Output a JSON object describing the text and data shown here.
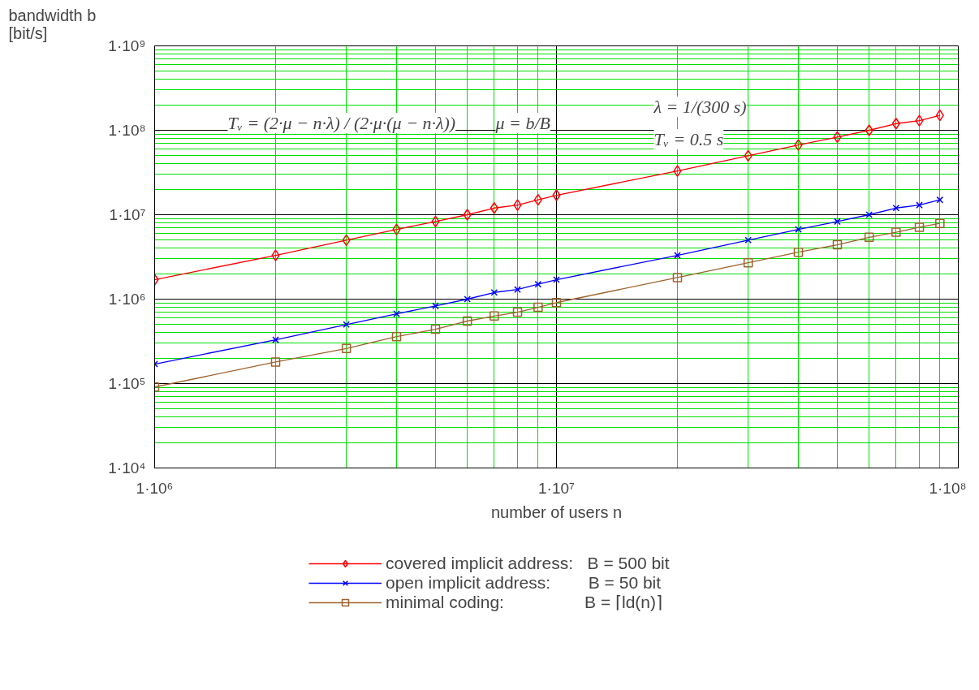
{
  "chart_data": {
    "type": "line",
    "xlabel": "number of users n",
    "ylabel": "bandwidth b [bit/s]",
    "x": [
      1000000,
      2000000,
      3000000,
      4000000,
      5000000,
      6000000,
      7000000,
      8000000,
      9000000,
      10000000,
      20000000,
      30000000,
      40000000,
      50000000,
      60000000,
      70000000,
      80000000,
      90000000
    ],
    "series": [
      {
        "name": "covered implicit address:   B = 500 bit",
        "color": "#ff0000",
        "marker": "diamond",
        "values": [
          1700000,
          3300000,
          5000000,
          6700000,
          8300000,
          10000000,
          12000000,
          13000000,
          15000000,
          17000000,
          33000000,
          50000000,
          67000000,
          83000000,
          100000000,
          120000000,
          130000000,
          150000000
        ]
      },
      {
        "name": "open implicit address:        B = 50 bit",
        "color": "#0000ff",
        "marker": "cross",
        "values": [
          170000,
          330000,
          500000,
          670000,
          830000,
          1000000,
          1200000,
          1300000,
          1500000,
          1700000,
          3300000,
          5000000,
          6700000,
          8300000,
          10000000,
          12000000,
          13000000,
          15000000
        ]
      },
      {
        "name": "minimal coding:                 B = ⌈ld(n)⌉",
        "color": "#a0622d",
        "marker": "square",
        "values": [
          91000,
          180000,
          260000,
          360000,
          440000,
          550000,
          630000,
          700000,
          800000,
          910000,
          1800000,
          2700000,
          3600000,
          4400000,
          5400000,
          6200000,
          7100000,
          7900000
        ]
      }
    ],
    "log": "xy",
    "xlim": [
      1000000,
      100000000
    ],
    "ylim": [
      10000,
      1000000000
    ],
    "xticks": [
      {
        "value": 1000000,
        "label": "1·10⁶"
      },
      {
        "value": 2000000,
        "label": null
      },
      {
        "value": 3000000,
        "label": null
      },
      {
        "value": 4000000,
        "label": null
      },
      {
        "value": 5000000,
        "label": null
      },
      {
        "value": 6000000,
        "label": null
      },
      {
        "value": 7000000,
        "label": null
      },
      {
        "value": 8000000,
        "label": null
      },
      {
        "value": 9000000,
        "label": null
      },
      {
        "value": 10000000,
        "label": "1·10⁷"
      },
      {
        "value": 20000000,
        "label": null
      },
      {
        "value": 30000000,
        "label": null
      },
      {
        "value": 40000000,
        "label": null
      },
      {
        "value": 50000000,
        "label": null
      },
      {
        "value": 60000000,
        "label": null
      },
      {
        "value": 70000000,
        "label": null
      },
      {
        "value": 80000000,
        "label": null
      },
      {
        "value": 90000000,
        "label": null
      },
      {
        "value": 100000000,
        "label": "1·10⁸"
      }
    ],
    "yticks": [
      {
        "value": 10000,
        "label": "1·10⁴"
      },
      {
        "value": 20000,
        "label": null
      },
      {
        "value": 30000,
        "label": null
      },
      {
        "value": 40000,
        "label": null
      },
      {
        "value": 50000,
        "label": null
      },
      {
        "value": 60000,
        "label": null
      },
      {
        "value": 70000,
        "label": null
      },
      {
        "value": 80000,
        "label": null
      },
      {
        "value": 90000,
        "label": null
      },
      {
        "value": 100000,
        "label": "1·10⁵"
      },
      {
        "value": 200000,
        "label": null
      },
      {
        "value": 300000,
        "label": null
      },
      {
        "value": 400000,
        "label": null
      },
      {
        "value": 500000,
        "label": null
      },
      {
        "value": 600000,
        "label": null
      },
      {
        "value": 700000,
        "label": null
      },
      {
        "value": 800000,
        "label": null
      },
      {
        "value": 900000,
        "label": null
      },
      {
        "value": 1000000,
        "label": "1·10⁶"
      },
      {
        "value": 2000000,
        "label": null
      },
      {
        "value": 3000000,
        "label": null
      },
      {
        "value": 4000000,
        "label": null
      },
      {
        "value": 5000000,
        "label": null
      },
      {
        "value": 6000000,
        "label": null
      },
      {
        "value": 7000000,
        "label": null
      },
      {
        "value": 8000000,
        "label": null
      },
      {
        "value": 9000000,
        "label": null
      },
      {
        "value": 10000000,
        "label": "1·10⁷"
      },
      {
        "value": 20000000,
        "label": null
      },
      {
        "value": 30000000,
        "label": null
      },
      {
        "value": 40000000,
        "label": null
      },
      {
        "value": 50000000,
        "label": null
      },
      {
        "value": 60000000,
        "label": null
      },
      {
        "value": 70000000,
        "label": null
      },
      {
        "value": 80000000,
        "label": null
      },
      {
        "value": 90000000,
        "label": null
      },
      {
        "value": 100000000,
        "label": "1·10⁸"
      },
      {
        "value": 200000000,
        "label": null
      },
      {
        "value": 300000000,
        "label": null
      },
      {
        "value": 400000000,
        "label": null
      },
      {
        "value": 500000000,
        "label": null
      },
      {
        "value": 600000000,
        "label": null
      },
      {
        "value": 700000000,
        "label": null
      },
      {
        "value": 800000000,
        "label": null
      },
      {
        "value": 900000000,
        "label": null
      },
      {
        "value": 1000000000,
        "label": "1·10⁹"
      }
    ],
    "grid": true,
    "legend": "bottom",
    "line_style": "solid",
    "annotations": [
      "Tᵥ = (2·μ − n·λ) / (2·μ·(μ − n·λ))",
      "μ = b/B",
      "λ = 1/(300 s)",
      "Tᵥ = 0.5 s"
    ]
  }
}
